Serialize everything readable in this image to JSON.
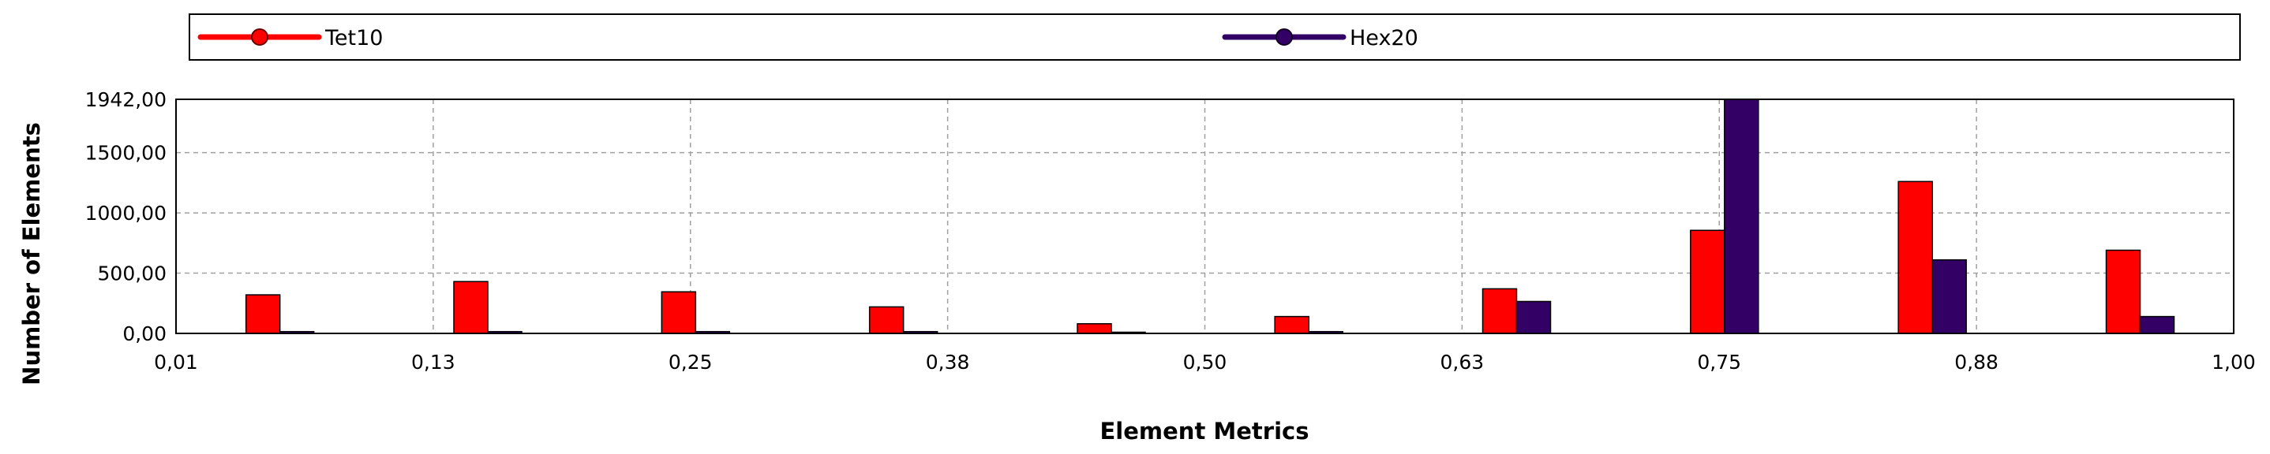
{
  "chart_data": {
    "type": "bar",
    "xlabel": "Element Metrics",
    "ylabel": "Number of Elements",
    "x_ticks": [
      "0,01",
      "0,13",
      "0,25",
      "0,38",
      "0,50",
      "0,63",
      "0,75",
      "0,88",
      "1,00"
    ],
    "y_ticks": [
      "0,00",
      "500,00",
      "1000,00",
      "1500,00",
      "1942,00"
    ],
    "xlim": [
      0.01,
      1.0
    ],
    "ylim": [
      0,
      1942
    ],
    "grid": true,
    "legend_position": "top",
    "x": [
      0.06,
      0.16,
      0.26,
      0.36,
      0.46,
      0.555,
      0.655,
      0.755,
      0.855,
      0.955
    ],
    "series": [
      {
        "name": "Tet10",
        "color": "#ff0000",
        "values": [
          320,
          430,
          345,
          220,
          80,
          140,
          370,
          855,
          1260,
          690
        ]
      },
      {
        "name": "Hex20",
        "color": "#330066",
        "values": [
          15,
          15,
          15,
          15,
          10,
          15,
          265,
          1942,
          610,
          140
        ]
      }
    ]
  }
}
